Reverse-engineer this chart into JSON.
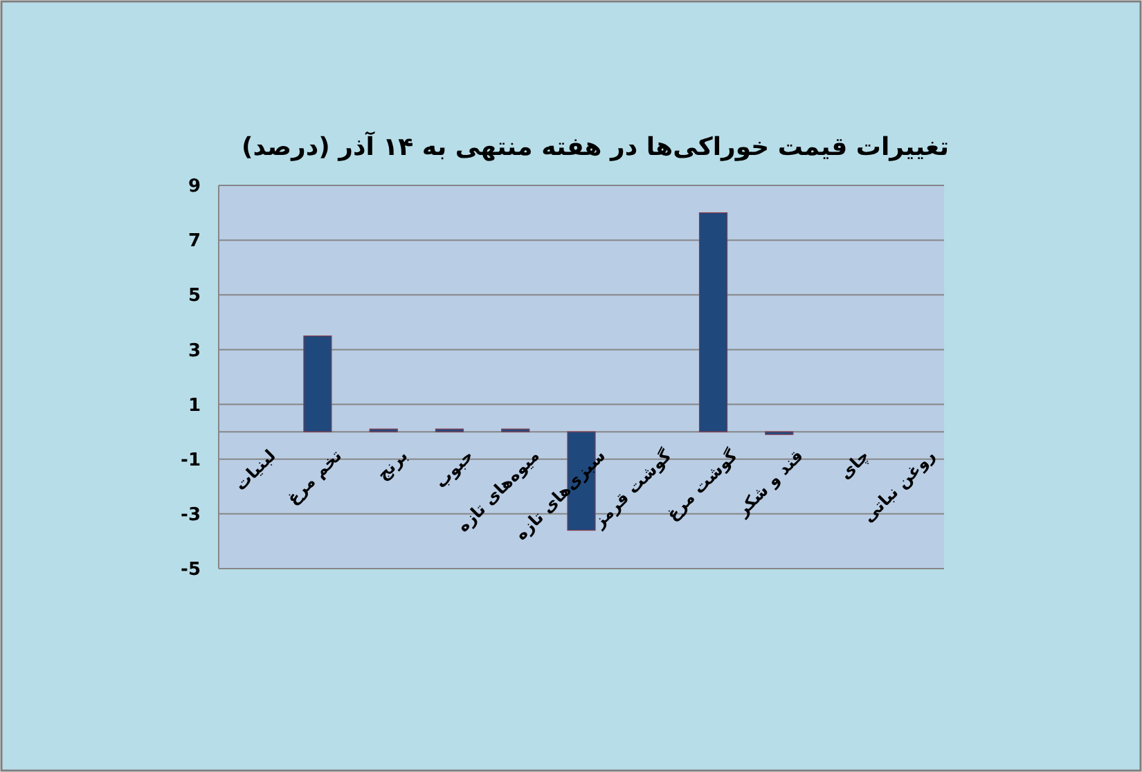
{
  "chart_data": {
    "type": "bar",
    "title": "تغییرات قیمت خوراکی‌ها در هفته منتهی به ۱۴ آذر (درصد)",
    "categories": [
      "لبنیات",
      "تخم مرغ",
      "برنج",
      "حبوب",
      "میوه‌های تازه",
      "سبزی‌های تازه",
      "گوشت قرمز",
      "گوشت مرغ",
      "قند و شکر",
      "چای",
      "روغن نباتی"
    ],
    "values": [
      0,
      3.5,
      0.1,
      0.1,
      0.1,
      -3.6,
      0,
      8,
      -0.1,
      0,
      0
    ],
    "color": "#1f497d",
    "ylim": [
      -5,
      9
    ],
    "yticks": [
      -5,
      -3,
      -1,
      1,
      3,
      5,
      7,
      9
    ],
    "grid": "y"
  }
}
